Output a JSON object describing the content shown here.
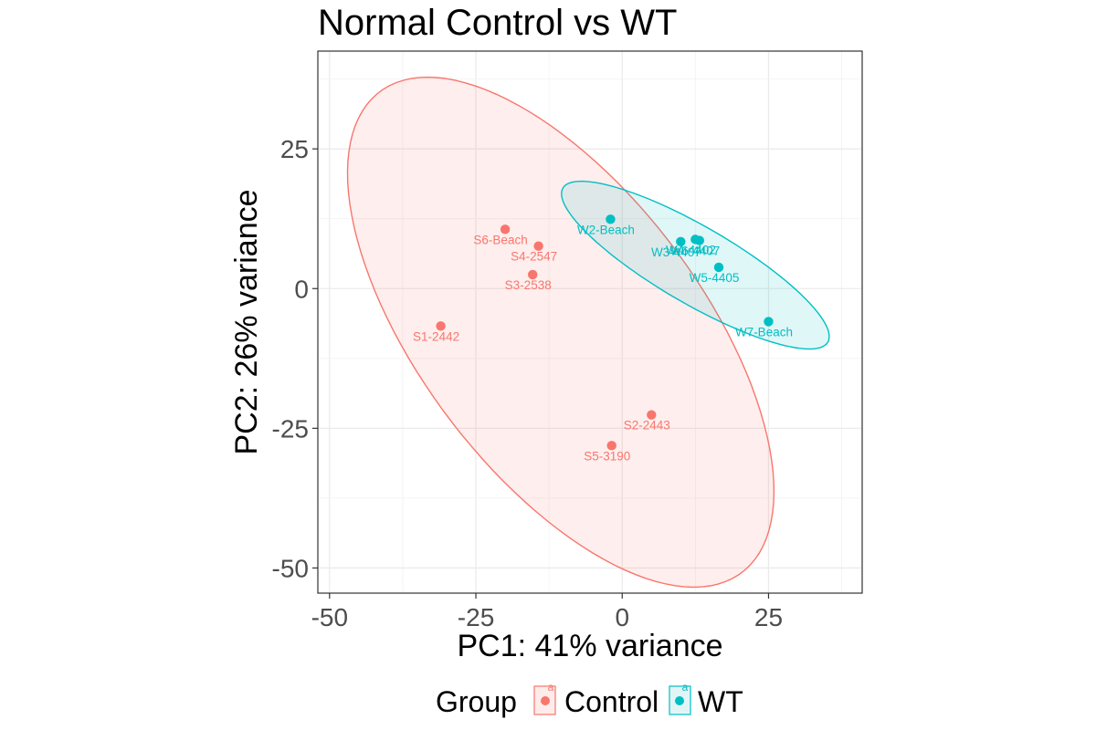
{
  "chart_data": {
    "type": "scatter",
    "title": "Normal Control vs WT",
    "xlabel": "PC1: 41% variance",
    "ylabel": "PC2: 26% variance",
    "xlim": [
      -52,
      41
    ],
    "ylim": [
      -54.5,
      42.5
    ],
    "xticks": [
      -50,
      -25,
      0,
      25
    ],
    "xtick_labels": [
      "-50",
      "-25",
      "0",
      "25"
    ],
    "yticks": [
      -50,
      -25,
      0,
      25
    ],
    "ytick_labels": [
      "-50",
      "-25",
      "0",
      "25"
    ],
    "grid": true,
    "legend": {
      "title": "Group",
      "placement": "bottom",
      "entries": [
        {
          "label": "Control",
          "key_text": "a"
        },
        {
          "label": "WT",
          "key_text": "a"
        }
      ]
    },
    "series": [
      {
        "name": "Control",
        "color": "#F8766D",
        "fill": "#fdecea",
        "points": [
          {
            "label": "S1-2442",
            "x": -31,
            "y": -6.7
          },
          {
            "label": "S2-2443",
            "x": 5,
            "y": -22.6
          },
          {
            "label": "S3-2538",
            "x": -15.3,
            "y": 2.5
          },
          {
            "label": "S4-2547",
            "x": -14.3,
            "y": 7.6
          },
          {
            "label": "S5-3190",
            "x": -1.8,
            "y": -28.1
          },
          {
            "label": "S6-Beach",
            "x": -20,
            "y": 10.6
          }
        ],
        "ellipse": {
          "cx": -10.5,
          "cy": -7.8,
          "rx": 53,
          "ry": 24.5,
          "angle_deg": -55
        }
      },
      {
        "name": "WT",
        "color": "#00BFC4",
        "fill": "#e2f5f6",
        "points": [
          {
            "label": "W2-Beach",
            "x": -2,
            "y": 12.4
          },
          {
            "label": "W3-4407",
            "x": 10,
            "y": 8.4
          },
          {
            "label": "W4-4402",
            "x": 12.5,
            "y": 8.8
          },
          {
            "label": "W6-4407",
            "x": 13.2,
            "y": 8.6
          },
          {
            "label": "W5-4405",
            "x": 16.5,
            "y": 3.8
          },
          {
            "label": "W7-Beach",
            "x": 25,
            "y": -5.9
          }
        ],
        "ellipse": {
          "cx": 12.5,
          "cy": 4.2,
          "rx": 26.5,
          "ry": 6.8,
          "angle_deg": -31.5
        }
      }
    ]
  }
}
